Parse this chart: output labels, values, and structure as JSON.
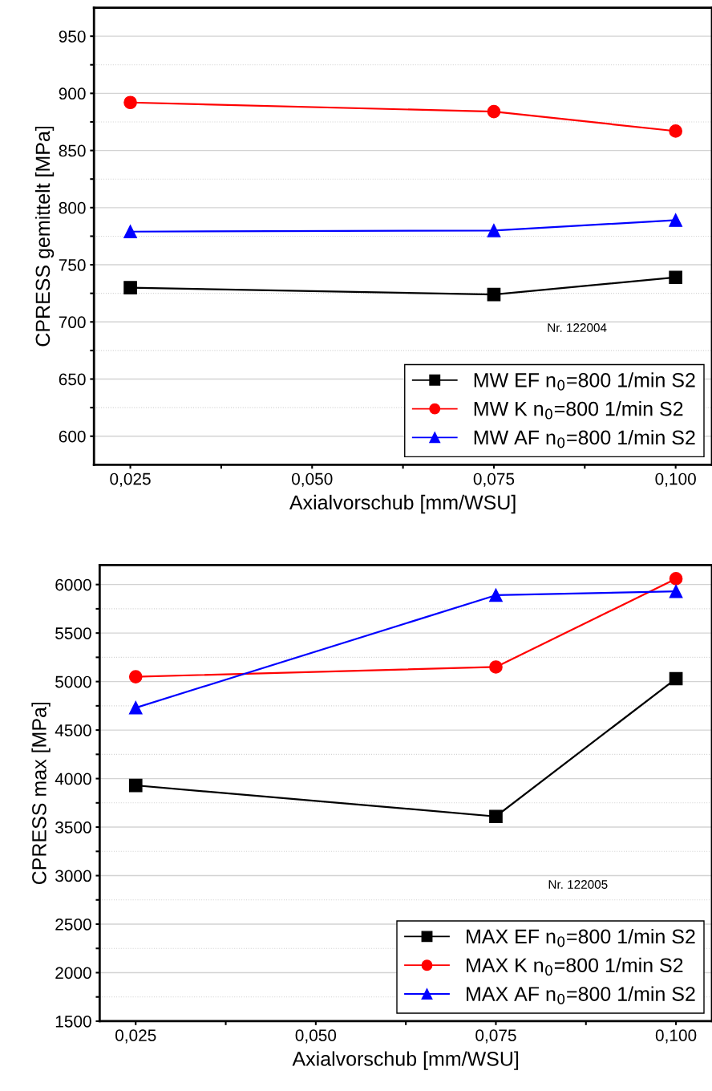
{
  "chart_data": [
    {
      "type": "line",
      "xlabel": "Axialvorschub [mm/WSU]",
      "ylabel": "CPRESS gemittelt [MPa]",
      "x": [
        0.025,
        0.075,
        0.1
      ],
      "series": [
        {
          "name": "MW EF n$_{0}$=800 1/min S2",
          "color": "#000000",
          "marker": "square",
          "values": [
            730,
            724,
            739
          ]
        },
        {
          "name": "MW K n$_{0}$=800 1/min S2",
          "color": "#ff0000",
          "marker": "circle",
          "values": [
            892,
            884,
            867
          ]
        },
        {
          "name": "MW AF n$_{0}$=800 1/min S2",
          "color": "#0000ff",
          "marker": "triangle",
          "values": [
            779,
            780,
            789
          ]
        }
      ],
      "xlim": [
        0.02,
        0.105
      ],
      "xticks": [
        {
          "value": 0.025,
          "label": "0,025"
        },
        {
          "value": 0.0375,
          "label": null
        },
        {
          "value": 0.05,
          "label": "0,050"
        },
        {
          "value": 0.0625,
          "label": null
        },
        {
          "value": 0.075,
          "label": "0,075"
        },
        {
          "value": 0.0875,
          "label": null
        },
        {
          "value": 0.1,
          "label": "0,100"
        }
      ],
      "ylim": [
        575,
        975
      ],
      "yticks": [
        {
          "value": 600,
          "label": "600"
        },
        {
          "value": 625,
          "label": null
        },
        {
          "value": 650,
          "label": "650"
        },
        {
          "value": 675,
          "label": null
        },
        {
          "value": 700,
          "label": "700"
        },
        {
          "value": 725,
          "label": null
        },
        {
          "value": 750,
          "label": "750"
        },
        {
          "value": 775,
          "label": null
        },
        {
          "value": 800,
          "label": "800"
        },
        {
          "value": 825,
          "label": null
        },
        {
          "value": 850,
          "label": "850"
        },
        {
          "value": 875,
          "label": null
        },
        {
          "value": 900,
          "label": "900"
        },
        {
          "value": 925,
          "label": null
        },
        {
          "value": 950,
          "label": "950"
        }
      ],
      "grid": "y",
      "legend": "bottom right",
      "line_style": "solid",
      "annotations": [
        "Nr. 122004"
      ]
    },
    {
      "type": "line",
      "xlabel": "Axialvorschub [mm/WSU]",
      "ylabel": "CPRESS max [MPa]",
      "x": [
        0.025,
        0.075,
        0.1
      ],
      "series": [
        {
          "name": "MAX EF n$_{0}$=800 1/min S2",
          "color": "#000000",
          "marker": "square",
          "values": [
            3930,
            3610,
            5030
          ]
        },
        {
          "name": "MAX K n$_{0}$=800 1/min S2",
          "color": "#ff0000",
          "marker": "circle",
          "values": [
            5050,
            5150,
            6060
          ]
        },
        {
          "name": "MAX AF n$_{0}$=800 1/min S2",
          "color": "#0000ff",
          "marker": "triangle",
          "values": [
            4730,
            5890,
            5930
          ]
        }
      ],
      "xlim": [
        0.02,
        0.105
      ],
      "xticks": [
        {
          "value": 0.025,
          "label": "0,025"
        },
        {
          "value": 0.0375,
          "label": null
        },
        {
          "value": 0.05,
          "label": "0,050"
        },
        {
          "value": 0.0625,
          "label": null
        },
        {
          "value": 0.075,
          "label": "0,075"
        },
        {
          "value": 0.0875,
          "label": null
        },
        {
          "value": 0.1,
          "label": "0,100"
        }
      ],
      "ylim": [
        1500,
        6200
      ],
      "yticks": [
        1500,
        {
          "value": 1750,
          "label": null
        },
        2000,
        {
          "value": 2250,
          "label": null
        },
        2500,
        {
          "value": 2750,
          "label": null
        },
        3000,
        {
          "value": 3250,
          "label": null
        },
        3500,
        {
          "value": 3750,
          "label": null
        },
        4000,
        {
          "value": 4250,
          "label": null
        },
        4500,
        {
          "value": 4750,
          "label": null
        },
        5000,
        {
          "value": 5250,
          "label": null
        },
        5500,
        {
          "value": 5750,
          "label": null
        },
        6000
      ],
      "grid": "y",
      "legend": "bottom right",
      "line_style": "solid",
      "annotations": [
        "Nr. 122005"
      ]
    }
  ]
}
